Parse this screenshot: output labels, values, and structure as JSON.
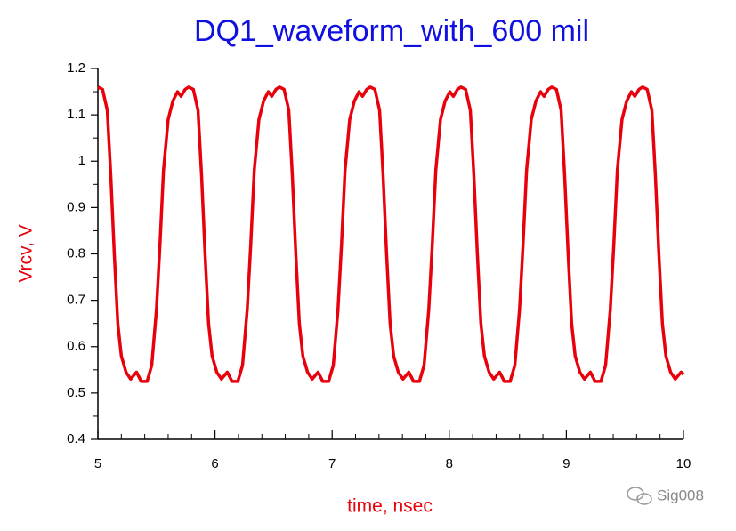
{
  "chart_data": {
    "type": "line",
    "title": "DQ1_waveform_with_600 mil",
    "xlabel": "time, nsec",
    "ylabel": "Vrcv, V",
    "watermark": "Sig008",
    "xlim": [
      5,
      10
    ],
    "ylim": [
      0.4,
      1.2
    ],
    "xticks": [
      5,
      6,
      7,
      8,
      9,
      10
    ],
    "yticks": [
      0.4,
      0.5,
      0.6,
      0.7,
      0.8,
      0.9,
      1.0,
      1.1,
      1.2
    ],
    "xminorticks": [
      5.2,
      5.4,
      5.6,
      5.8,
      6.2,
      6.4,
      6.6,
      6.8,
      7.2,
      7.4,
      7.6,
      7.8,
      8.2,
      8.4,
      8.6,
      8.8,
      9.2,
      9.4,
      9.6,
      9.8
    ],
    "yminorticks": [
      0.45,
      0.55,
      0.65,
      0.75,
      0.85,
      0.95,
      1.05,
      1.15
    ],
    "grid": false,
    "series": [
      {
        "name": "Vrcv",
        "color": "#e8000b",
        "x": [
          5,
          5.04,
          5.08,
          5.11,
          5.14,
          5.17,
          5.2,
          5.24,
          5.28,
          5.33,
          5.37,
          5.42,
          5.46,
          5.5,
          5.53,
          5.56,
          5.6,
          5.64,
          5.68,
          5.71,
          5.745,
          5.775,
          5.815,
          5.855,
          5.885,
          5.915,
          5.945,
          5.975,
          6.015,
          6.055,
          6.105,
          6.145,
          6.195,
          6.235,
          6.275,
          6.305,
          6.335,
          6.375,
          6.415,
          6.455,
          6.485,
          6.52,
          6.55,
          6.59,
          6.63,
          6.66,
          6.69,
          6.72,
          6.75,
          6.79,
          6.83,
          6.88,
          6.92,
          6.97,
          7.01,
          7.05,
          7.08,
          7.11,
          7.15,
          7.19,
          7.23,
          7.26,
          7.295,
          7.325,
          7.365,
          7.405,
          7.435,
          7.465,
          7.495,
          7.525,
          7.565,
          7.605,
          7.655,
          7.695,
          7.745,
          7.785,
          7.825,
          7.855,
          7.885,
          7.925,
          7.965,
          8.005,
          8.035,
          8.07,
          8.1,
          8.14,
          8.18,
          8.21,
          8.24,
          8.27,
          8.3,
          8.34,
          8.38,
          8.43,
          8.47,
          8.52,
          8.56,
          8.6,
          8.63,
          8.66,
          8.7,
          8.74,
          8.78,
          8.81,
          8.845,
          8.875,
          8.915,
          8.955,
          8.985,
          9.015,
          9.045,
          9.075,
          9.115,
          9.155,
          9.205,
          9.245,
          9.295,
          9.335,
          9.375,
          9.405,
          9.435,
          9.475,
          9.515,
          9.555,
          9.585,
          9.62,
          9.65,
          9.69,
          9.73,
          9.76,
          9.79,
          9.82,
          9.85,
          9.89,
          9.93,
          9.98,
          10
        ],
        "values": [
          1.16,
          1.155,
          1.11,
          0.97,
          0.8,
          0.65,
          0.58,
          0.545,
          0.53,
          0.545,
          0.525,
          0.525,
          0.56,
          0.68,
          0.82,
          0.98,
          1.09,
          1.13,
          1.15,
          1.14,
          1.155,
          1.16,
          1.155,
          1.11,
          0.97,
          0.8,
          0.65,
          0.58,
          0.545,
          0.53,
          0.545,
          0.525,
          0.525,
          0.56,
          0.68,
          0.82,
          0.98,
          1.09,
          1.13,
          1.15,
          1.14,
          1.155,
          1.16,
          1.155,
          1.11,
          0.97,
          0.8,
          0.65,
          0.58,
          0.545,
          0.53,
          0.545,
          0.525,
          0.525,
          0.56,
          0.68,
          0.82,
          0.98,
          1.09,
          1.13,
          1.15,
          1.14,
          1.155,
          1.16,
          1.155,
          1.11,
          0.97,
          0.8,
          0.65,
          0.58,
          0.545,
          0.53,
          0.545,
          0.525,
          0.525,
          0.56,
          0.68,
          0.82,
          0.98,
          1.09,
          1.13,
          1.15,
          1.14,
          1.155,
          1.16,
          1.155,
          1.11,
          0.97,
          0.8,
          0.65,
          0.58,
          0.545,
          0.53,
          0.545,
          0.525,
          0.525,
          0.56,
          0.68,
          0.82,
          0.98,
          1.09,
          1.13,
          1.15,
          1.14,
          1.155,
          1.16,
          1.155,
          1.11,
          0.97,
          0.8,
          0.65,
          0.58,
          0.545,
          0.53,
          0.545,
          0.525,
          0.525,
          0.56,
          0.68,
          0.82,
          0.98,
          1.09,
          1.13,
          1.15,
          1.14,
          1.155,
          1.16,
          1.155,
          1.11,
          0.97,
          0.8,
          0.65,
          0.58,
          0.545,
          0.53,
          0.545,
          0.54
        ]
      }
    ]
  }
}
